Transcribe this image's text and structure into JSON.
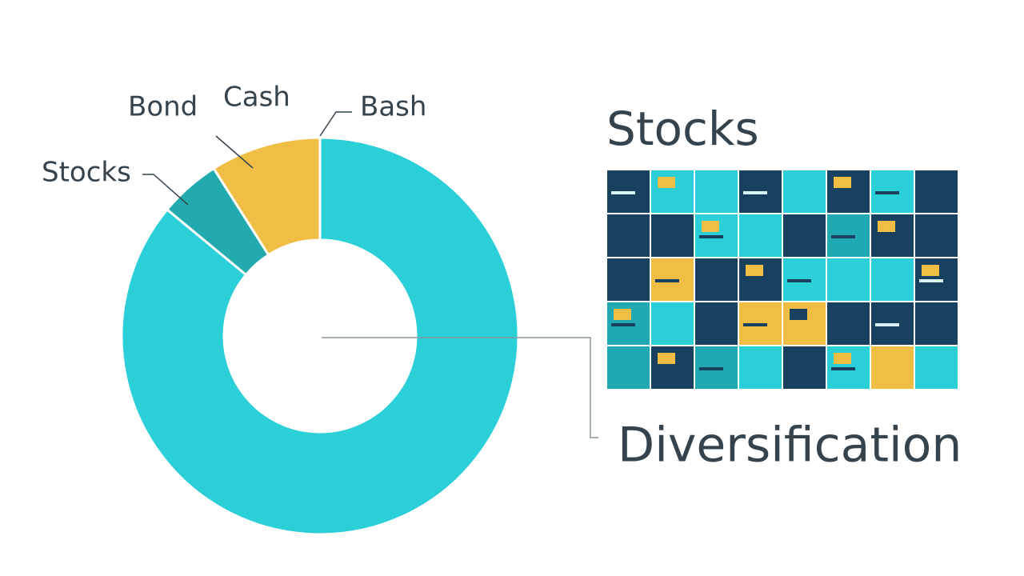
{
  "chart_data": {
    "type": "pie",
    "donut": true,
    "categories": [
      "Bash",
      "Stocks",
      "Cash"
    ],
    "values": [
      86,
      5,
      9
    ],
    "colors": [
      "#2bcfd8",
      "#22aaae",
      "#f0bd45"
    ],
    "annotations": [
      "Bond"
    ]
  },
  "panel": {
    "title": "Stocks",
    "caption": "Diversification"
  }
}
